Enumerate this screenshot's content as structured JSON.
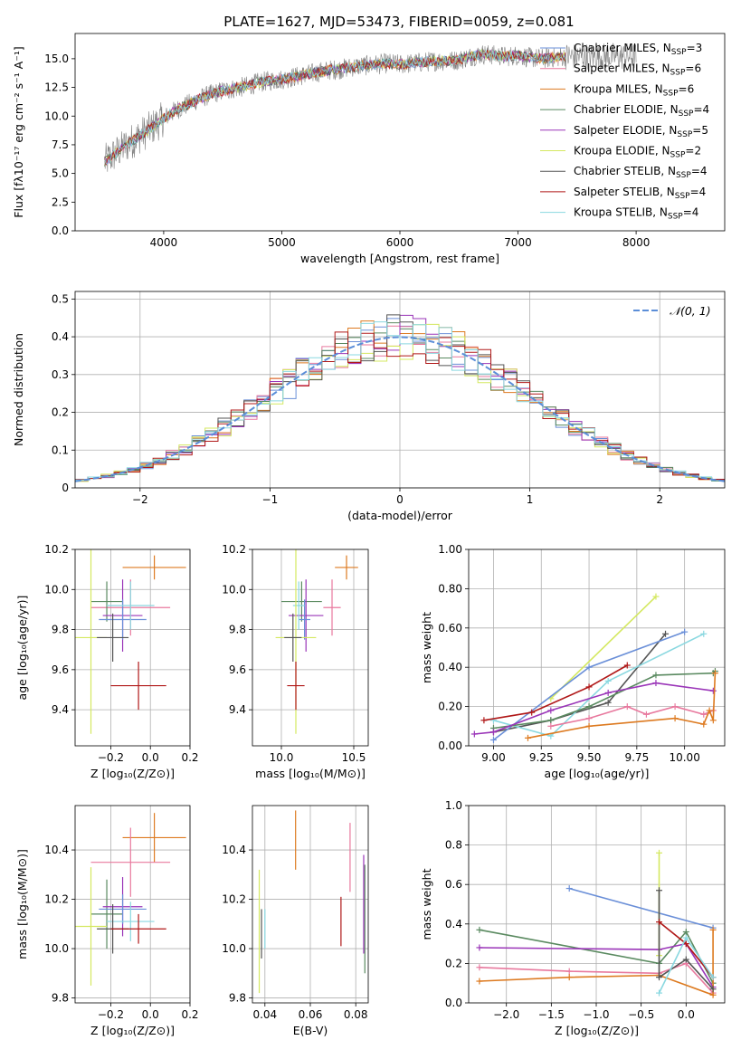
{
  "chart_data": [
    {
      "id": "spectrum",
      "type": "line",
      "title": "PLATE=1627, MJD=53473, FIBERID=0059, z=0.081",
      "xlabel": "wavelength [Angstrom, rest frame]",
      "ylabel": "Flux [fλ10⁻¹⁷ erg cm⁻² s⁻¹ A⁻¹]",
      "xlim": [
        3250,
        8750
      ],
      "ylim": [
        0,
        17.2
      ],
      "xticks": [
        4000,
        5000,
        6000,
        7000,
        8000
      ],
      "yticks": [
        0.0,
        2.5,
        5.0,
        7.5,
        10.0,
        12.5,
        15.0
      ],
      "grid": false,
      "legend_position": "top-right",
      "data_color": "#808080",
      "spectrum_x": [
        3500,
        3600,
        3700,
        3800,
        3900,
        4000,
        4100,
        4200,
        4300,
        4400,
        4500,
        4600,
        4700,
        4800,
        4900,
        5000,
        5100,
        5200,
        5300,
        5400,
        5500,
        5600,
        5700,
        5800,
        5900,
        6000,
        6100,
        6200,
        6300,
        6400,
        6500,
        6600,
        6700,
        6800,
        6900,
        7000,
        7100,
        7200,
        7300,
        7400
      ],
      "spectrum_model": [
        6.0,
        6.8,
        7.6,
        8.3,
        9.0,
        9.8,
        10.5,
        11.0,
        11.5,
        11.9,
        12.2,
        12.4,
        12.6,
        12.9,
        13.1,
        13.2,
        13.4,
        13.6,
        13.8,
        14.0,
        14.1,
        14.3,
        14.4,
        14.5,
        14.6,
        14.5,
        14.6,
        14.7,
        14.8,
        14.8,
        14.9,
        15.2,
        15.4,
        15.3,
        15.2,
        15.3,
        15.1,
        15.0,
        15.1,
        15.2
      ],
      "legend": [
        {
          "label": "Chabrier MILES, N",
          "sub": "SSP",
          "tail": "=3",
          "color": "#6a8fd8"
        },
        {
          "label": "Salpeter MILES, N",
          "sub": "SSP",
          "tail": "=6",
          "color": "#e8799e"
        },
        {
          "label": "Kroupa MILES, N",
          "sub": "SSP",
          "tail": "=6",
          "color": "#dd7a20"
        },
        {
          "label": "Chabrier ELODIE, N",
          "sub": "SSP",
          "tail": "=4",
          "color": "#5a8a60"
        },
        {
          "label": "Salpeter ELODIE, N",
          "sub": "SSP",
          "tail": "=5",
          "color": "#9a35b8"
        },
        {
          "label": "Kroupa ELODIE, N",
          "sub": "SSP",
          "tail": "=2",
          "color": "#d4e860"
        },
        {
          "label": "Chabrier STELIB, N",
          "sub": "SSP",
          "tail": "=4",
          "color": "#555555"
        },
        {
          "label": "Salpeter STELIB, N",
          "sub": "SSP",
          "tail": "=4",
          "color": "#b01818"
        },
        {
          "label": "Kroupa STELIB, N",
          "sub": "SSP",
          "tail": "=4",
          "color": "#8ad8e0"
        }
      ]
    },
    {
      "id": "residuals",
      "type": "line",
      "xlabel": "(data-model)/error",
      "ylabel": "Normed distribution",
      "xlim": [
        -2.5,
        2.5
      ],
      "ylim": [
        0,
        0.52
      ],
      "xticks": [
        -2,
        -1,
        0,
        1,
        2
      ],
      "yticks": [
        0.0,
        0.1,
        0.2,
        0.3,
        0.4,
        0.5
      ],
      "grid": true,
      "legend_position": "top-right",
      "reference_label": "𝒩(0, 1)",
      "reference_color": "#5b8ed8",
      "bin_width": 0.1,
      "bin_start": -2.5
    },
    {
      "id": "age_vs_Z",
      "type": "scatter",
      "xlabel": "Z [log₁₀(Z/Z⊙)]",
      "ylabel": "age  [log₁₀(age/yr)]",
      "xlim": [
        -0.38,
        0.2
      ],
      "ylim": [
        9.22,
        10.2
      ],
      "xticks": [
        -0.2,
        0.0,
        0.2
      ],
      "yticks": [
        9.4,
        9.6,
        9.8,
        10.0,
        10.2
      ],
      "grid": true,
      "points": [
        {
          "x": 0.02,
          "y": 10.11,
          "xerr": 0.16,
          "yerr": 0.06,
          "color": "#dd7a20"
        },
        {
          "x": -0.1,
          "y": 9.91,
          "xerr": 0.2,
          "yerr": 0.14,
          "color": "#e8799e"
        },
        {
          "x": -0.22,
          "y": 9.94,
          "xerr": 0.08,
          "yerr": 0.1,
          "color": "#5a8a60"
        },
        {
          "x": -0.14,
          "y": 9.87,
          "xerr": 0.1,
          "yerr": 0.18,
          "color": "#9a35b8"
        },
        {
          "x": -0.14,
          "y": 9.85,
          "xerr": 0.12,
          "yerr": 0.1,
          "color": "#6a8fd8"
        },
        {
          "x": -0.1,
          "y": 9.92,
          "xerr": 0.12,
          "yerr": 0.12,
          "color": "#8ad8e0"
        },
        {
          "x": -0.3,
          "y": 9.76,
          "xerr": 0.08,
          "yerr": 0.48,
          "color": "#d4e860"
        },
        {
          "x": -0.19,
          "y": 9.76,
          "xerr": 0.08,
          "yerr": 0.12,
          "color": "#555555"
        },
        {
          "x": -0.06,
          "y": 9.52,
          "xerr": 0.14,
          "yerr": 0.12,
          "color": "#b01818"
        }
      ]
    },
    {
      "id": "age_vs_mass",
      "type": "scatter",
      "xlabel": "mass [log₁₀(M/M⊙)]",
      "ylabel": "",
      "xlim": [
        9.8,
        10.6
      ],
      "ylim": [
        9.22,
        10.2
      ],
      "xticks": [
        10.0,
        10.5
      ],
      "yticks": [
        9.4,
        9.6,
        9.8,
        10.0,
        10.2
      ],
      "grid": true,
      "points": [
        {
          "x": 10.45,
          "y": 10.11,
          "xerr": 0.08,
          "yerr": 0.06,
          "color": "#dd7a20"
        },
        {
          "x": 10.35,
          "y": 9.91,
          "xerr": 0.06,
          "yerr": 0.14,
          "color": "#e8799e"
        },
        {
          "x": 10.14,
          "y": 9.94,
          "xerr": 0.14,
          "yerr": 0.1,
          "color": "#5a8a60"
        },
        {
          "x": 10.17,
          "y": 9.87,
          "xerr": 0.12,
          "yerr": 0.18,
          "color": "#9a35b8"
        },
        {
          "x": 10.16,
          "y": 9.85,
          "xerr": 0.04,
          "yerr": 0.1,
          "color": "#6a8fd8"
        },
        {
          "x": 10.12,
          "y": 9.92,
          "xerr": 0.04,
          "yerr": 0.12,
          "color": "#8ad8e0"
        },
        {
          "x": 10.1,
          "y": 9.76,
          "xerr": 0.14,
          "yerr": 0.48,
          "color": "#d4e860"
        },
        {
          "x": 10.08,
          "y": 9.76,
          "xerr": 0.06,
          "yerr": 0.12,
          "color": "#555555"
        },
        {
          "x": 10.1,
          "y": 9.52,
          "xerr": 0.06,
          "yerr": 0.12,
          "color": "#b01818"
        }
      ]
    },
    {
      "id": "weight_vs_age",
      "type": "line",
      "xlabel": "age  [log₁₀(age/yr)]",
      "ylabel": "mass weight",
      "xlim": [
        8.87,
        10.21
      ],
      "ylim": [
        0,
        1.0
      ],
      "xticks": [
        9.0,
        9.25,
        9.5,
        9.75,
        10.0
      ],
      "yticks": [
        0.0,
        0.2,
        0.4,
        0.6,
        0.8,
        1.0
      ],
      "grid": true,
      "series": [
        {
          "color": "#d4e860",
          "x": [
            9.3,
            9.85
          ],
          "y": [
            0.24,
            0.76
          ]
        },
        {
          "color": "#555555",
          "x": [
            9.0,
            9.3,
            9.6,
            9.9
          ],
          "y": [
            0.07,
            0.13,
            0.22,
            0.57
          ]
        },
        {
          "color": "#6a8fd8",
          "x": [
            9.0,
            9.5,
            10.0
          ],
          "y": [
            0.03,
            0.4,
            0.58
          ]
        },
        {
          "color": "#8ad8e0",
          "x": [
            9.0,
            9.3,
            9.6,
            10.1
          ],
          "y": [
            0.13,
            0.05,
            0.33,
            0.57
          ]
        },
        {
          "color": "#b01818",
          "x": [
            8.95,
            9.2,
            9.5,
            9.7
          ],
          "y": [
            0.13,
            0.17,
            0.3,
            0.41
          ]
        },
        {
          "color": "#5a8a60",
          "x": [
            9.0,
            9.3,
            9.5,
            9.85,
            10.15,
            10.16
          ],
          "y": [
            0.09,
            0.13,
            0.2,
            0.36,
            0.37,
            0.38
          ]
        },
        {
          "color": "#9a35b8",
          "x": [
            8.9,
            9.0,
            9.3,
            9.6,
            9.85,
            10.15
          ],
          "y": [
            0.06,
            0.07,
            0.18,
            0.27,
            0.32,
            0.28
          ]
        },
        {
          "color": "#e8799e",
          "x": [
            9.3,
            9.5,
            9.7,
            9.8,
            9.95,
            10.1,
            10.15
          ],
          "y": [
            0.1,
            0.14,
            0.2,
            0.16,
            0.2,
            0.16,
            0.18
          ]
        },
        {
          "color": "#dd7a20",
          "x": [
            9.18,
            9.5,
            9.95,
            10.1,
            10.13,
            10.15,
            10.16
          ],
          "y": [
            0.04,
            0.1,
            0.14,
            0.11,
            0.18,
            0.13,
            0.37
          ]
        }
      ]
    },
    {
      "id": "mass_vs_Z",
      "type": "scatter",
      "xlabel": "Z [log₁₀(Z/Z⊙)]",
      "ylabel": "mass [log₁₀(M/M⊙)]",
      "xlim": [
        -0.38,
        0.2
      ],
      "ylim": [
        9.78,
        10.58
      ],
      "xticks": [
        -0.2,
        0.0,
        0.2
      ],
      "yticks": [
        9.8,
        10.0,
        10.2,
        10.4
      ],
      "grid": true,
      "points": [
        {
          "x": 0.02,
          "y": 10.45,
          "xerr": 0.16,
          "yerr": 0.1,
          "color": "#dd7a20"
        },
        {
          "x": -0.1,
          "y": 10.35,
          "xerr": 0.2,
          "yerr": 0.14,
          "color": "#e8799e"
        },
        {
          "x": -0.22,
          "y": 10.14,
          "xerr": 0.08,
          "yerr": 0.14,
          "color": "#5a8a60"
        },
        {
          "x": -0.14,
          "y": 10.17,
          "xerr": 0.1,
          "yerr": 0.12,
          "color": "#9a35b8"
        },
        {
          "x": -0.14,
          "y": 10.16,
          "xerr": 0.12,
          "yerr": 0.06,
          "color": "#6a8fd8"
        },
        {
          "x": -0.1,
          "y": 10.11,
          "xerr": 0.12,
          "yerr": 0.08,
          "color": "#8ad8e0"
        },
        {
          "x": -0.3,
          "y": 10.09,
          "xerr": 0.08,
          "yerr": 0.24,
          "color": "#d4e860"
        },
        {
          "x": -0.19,
          "y": 10.08,
          "xerr": 0.08,
          "yerr": 0.1,
          "color": "#555555"
        },
        {
          "x": -0.06,
          "y": 10.08,
          "xerr": 0.14,
          "yerr": 0.06,
          "color": "#b01818"
        }
      ]
    },
    {
      "id": "mass_vs_EBV",
      "type": "scatter",
      "xlabel": "E(B-V)",
      "ylabel": "",
      "xlim": [
        0.0345,
        0.0855
      ],
      "ylim": [
        9.78,
        10.58
      ],
      "xticks": [
        0.04,
        0.06,
        0.08
      ],
      "yticks": [
        9.8,
        10.0,
        10.2,
        10.4
      ],
      "grid": true,
      "points": [
        {
          "x": 0.0535,
          "y": 10.44,
          "yerr": 0.12,
          "color": "#dd7a20"
        },
        {
          "x": 0.0775,
          "y": 10.37,
          "yerr": 0.14,
          "color": "#e8799e"
        },
        {
          "x": 0.084,
          "y": 10.12,
          "yerr": 0.22,
          "color": "#5a8a60"
        },
        {
          "x": 0.0835,
          "y": 10.18,
          "yerr": 0.2,
          "color": "#9a35b8"
        },
        {
          "x": 0.0375,
          "y": 10.07,
          "yerr": 0.25,
          "color": "#d4e860"
        },
        {
          "x": 0.0385,
          "y": 10.06,
          "yerr": 0.1,
          "color": "#555555"
        },
        {
          "x": 0.04,
          "y": 10.08,
          "yerr": 0.08,
          "color": "#8ad8e0"
        },
        {
          "x": 0.0735,
          "y": 10.11,
          "yerr": 0.1,
          "color": "#b01818"
        }
      ]
    },
    {
      "id": "weight_vs_Z",
      "type": "line",
      "xlabel": "Z [log₁₀(Z/Z⊙)]",
      "ylabel": "mass weight",
      "xlim": [
        -2.42,
        0.43
      ],
      "ylim": [
        0,
        1.0
      ],
      "xticks": [
        -2.0,
        -1.5,
        -1.0,
        -0.5,
        0.0
      ],
      "yticks": [
        0.0,
        0.2,
        0.4,
        0.6,
        0.8,
        1.0
      ],
      "grid": true,
      "series": [
        {
          "color": "#6a8fd8",
          "x": [
            -1.3,
            0.3
          ],
          "y": [
            0.58,
            0.38
          ]
        },
        {
          "color": "#5a8a60",
          "x": [
            -2.3,
            -0.3,
            0.0,
            0.3
          ],
          "y": [
            0.37,
            0.2,
            0.36,
            0.1
          ]
        },
        {
          "color": "#9a35b8",
          "x": [
            -2.3,
            -0.3,
            0.0,
            0.3
          ],
          "y": [
            0.28,
            0.27,
            0.3,
            0.08
          ]
        },
        {
          "color": "#e8799e",
          "x": [
            -2.3,
            -1.3,
            -0.3,
            0.0,
            0.3
          ],
          "y": [
            0.18,
            0.16,
            0.15,
            0.2,
            0.05
          ]
        },
        {
          "color": "#dd7a20",
          "x": [
            -2.3,
            -1.3,
            -0.3,
            0.3,
            0.3
          ],
          "y": [
            0.11,
            0.13,
            0.14,
            0.04,
            0.37
          ]
        },
        {
          "color": "#d4e860",
          "x": [
            -0.3,
            -0.3
          ],
          "y": [
            0.24,
            0.76
          ]
        },
        {
          "color": "#555555",
          "x": [
            -0.3,
            -0.3,
            0.0,
            0.3
          ],
          "y": [
            0.57,
            0.13,
            0.22,
            0.07
          ]
        },
        {
          "color": "#b01818",
          "x": [
            -0.3,
            0.0,
            0.3
          ],
          "y": [
            0.41,
            0.3,
            0.13
          ]
        },
        {
          "color": "#8ad8e0",
          "x": [
            -0.3,
            0.0,
            0.3
          ],
          "y": [
            0.05,
            0.33,
            0.13
          ]
        }
      ]
    }
  ]
}
